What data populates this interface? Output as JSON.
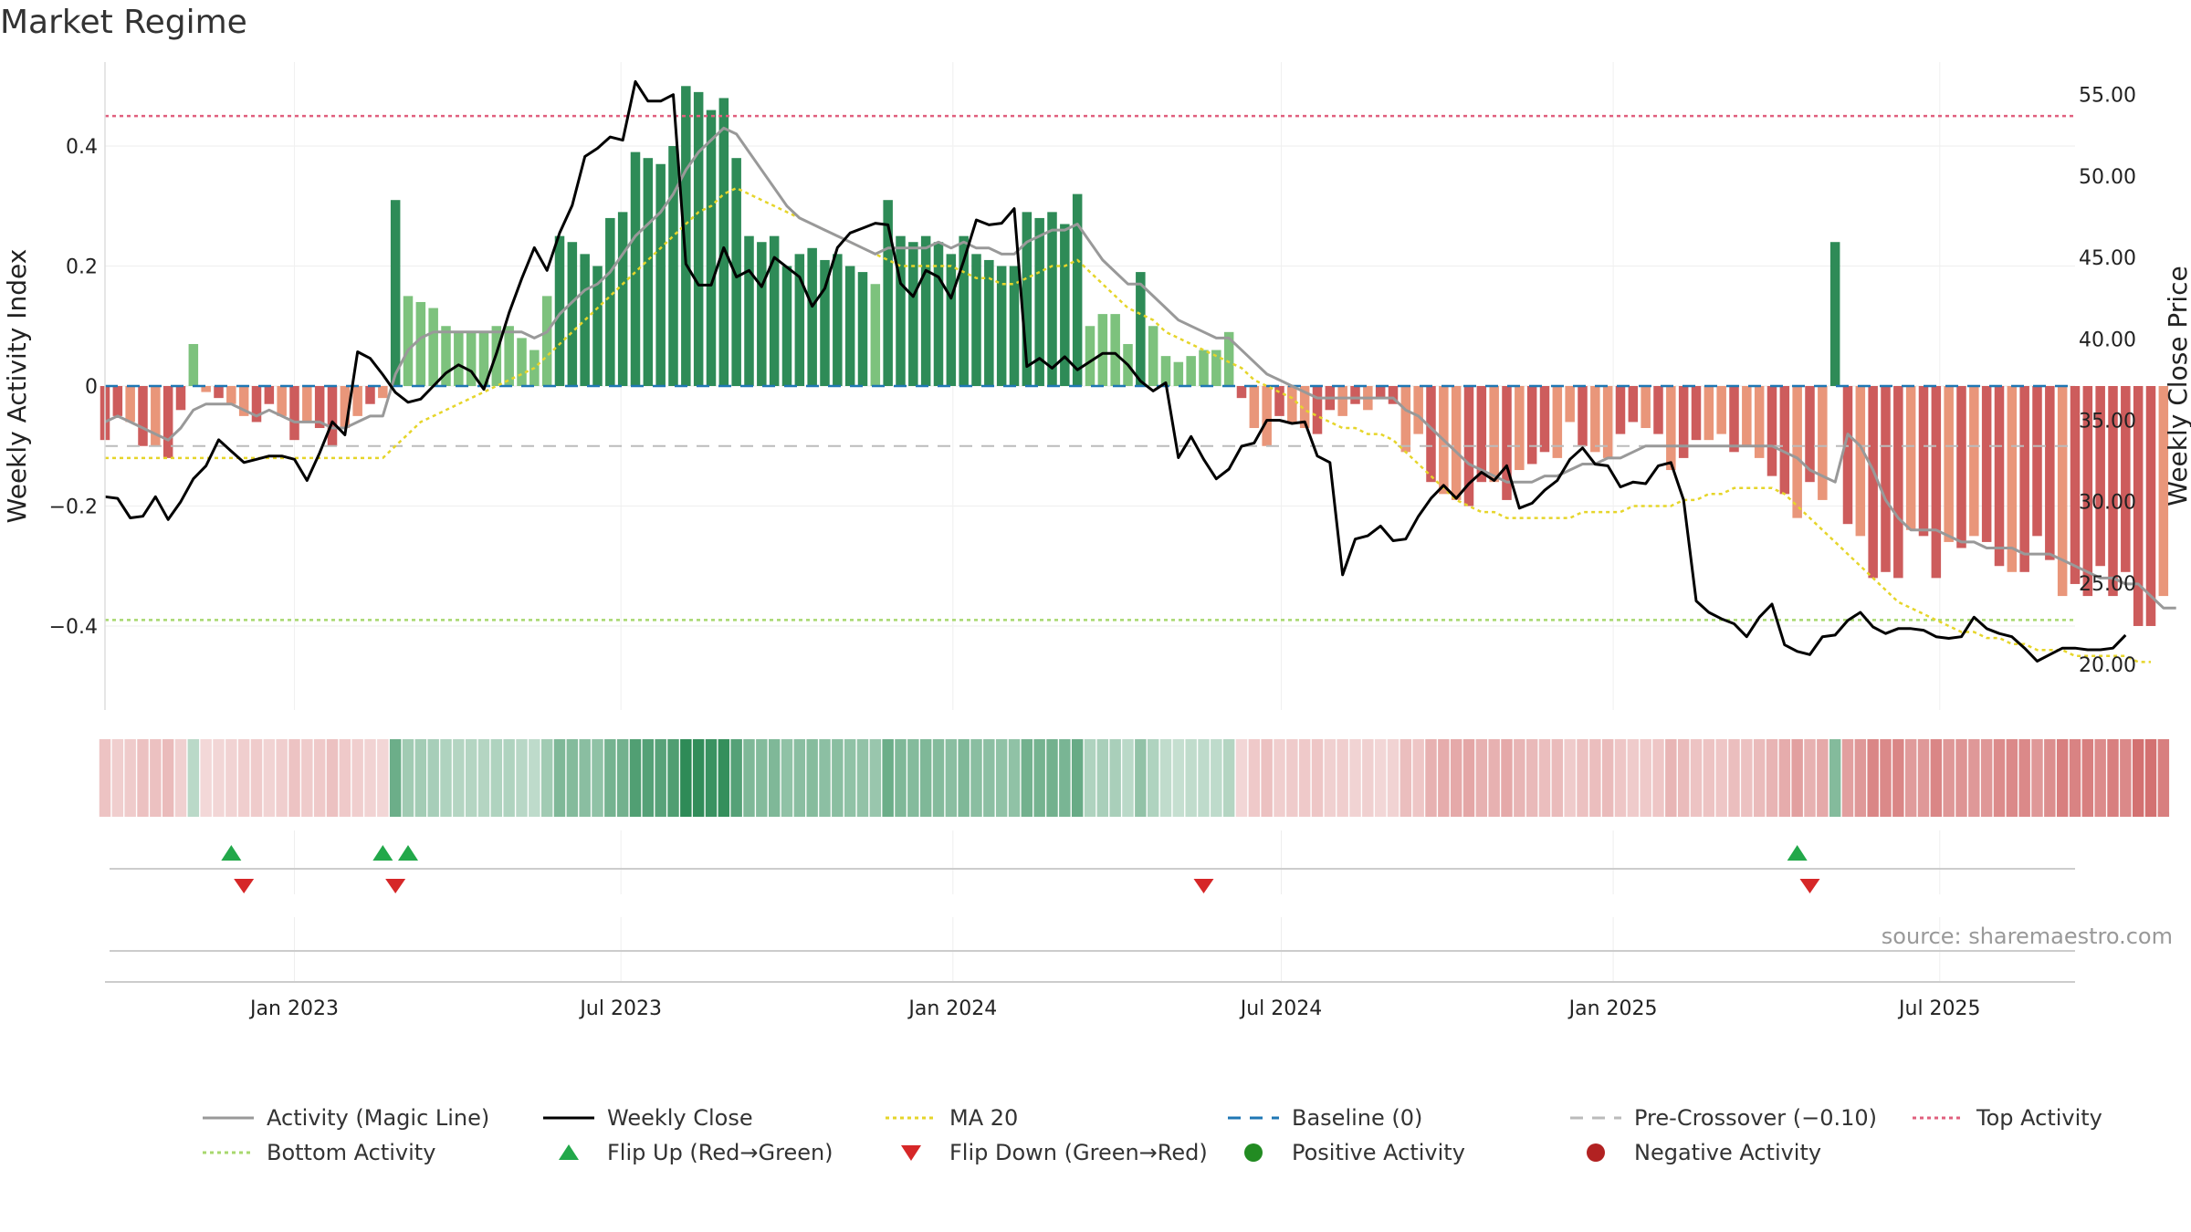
{
  "chart_data": {
    "type": "bar",
    "title": "Market Regime",
    "source": "source: sharemaestro.com",
    "ylabel_left": "Weekly Activity Index",
    "ylabel_right": "Weekly Close Price",
    "ylim_left": [
      -0.54,
      0.54
    ],
    "ylim_right": [
      17.2,
      57.0
    ],
    "yticks_left": [
      "0.4",
      "0.2",
      "0",
      "−0.2",
      "−0.4"
    ],
    "yticks_left_values": [
      0.4,
      0.2,
      0,
      -0.2,
      -0.4
    ],
    "yticks_right": [
      "55.00",
      "50.00",
      "45.00",
      "40.00",
      "35.00",
      "30.00",
      "25.00",
      "20.00"
    ],
    "yticks_right_values": [
      55,
      50,
      45,
      40,
      35,
      30,
      25,
      20
    ],
    "x_start": "2022-09-18",
    "x_end": "2025-09-14",
    "xticks": [
      {
        "date": "2023-01-01",
        "label": "Jan 2023"
      },
      {
        "date": "2023-07-01",
        "label": "Jul 2023"
      },
      {
        "date": "2024-01-01",
        "label": "Jan 2024"
      },
      {
        "date": "2024-07-01",
        "label": "Jul 2024"
      },
      {
        "date": "2025-01-01",
        "label": "Jan 2025"
      },
      {
        "date": "2025-07-01",
        "label": "Jul 2025"
      }
    ],
    "week_start": "2022-09-18",
    "reference_lines": {
      "top_activity": 0.45,
      "bottom_activity": -0.39,
      "pre_crossover": -0.1,
      "baseline": 0
    },
    "activity": [
      -0.09,
      -0.05,
      -0.06,
      -0.1,
      -0.1,
      -0.12,
      -0.04,
      0.07,
      -0.01,
      -0.02,
      -0.03,
      -0.05,
      -0.06,
      -0.03,
      -0.05,
      -0.09,
      -0.06,
      -0.07,
      -0.1,
      -0.07,
      -0.05,
      -0.03,
      -0.02,
      0.31,
      0.15,
      0.14,
      0.13,
      0.1,
      0.09,
      0.09,
      0.09,
      0.1,
      0.1,
      0.08,
      0.06,
      0.15,
      0.25,
      0.24,
      0.22,
      0.2,
      0.28,
      0.29,
      0.39,
      0.38,
      0.37,
      0.4,
      0.5,
      0.49,
      0.46,
      0.48,
      0.38,
      0.25,
      0.24,
      0.25,
      0.2,
      0.22,
      0.23,
      0.21,
      0.22,
      0.2,
      0.19,
      0.17,
      0.31,
      0.25,
      0.24,
      0.25,
      0.24,
      0.22,
      0.25,
      0.22,
      0.21,
      0.2,
      0.2,
      0.29,
      0.28,
      0.29,
      0.27,
      0.32,
      0.1,
      0.12,
      0.12,
      0.07,
      0.19,
      0.1,
      0.05,
      0.04,
      0.05,
      0.06,
      0.06,
      0.09,
      -0.02,
      -0.07,
      -0.1,
      -0.05,
      -0.06,
      -0.07,
      -0.08,
      -0.04,
      -0.05,
      -0.03,
      -0.04,
      -0.02,
      -0.03,
      -0.11,
      -0.08,
      -0.16,
      -0.18,
      -0.19,
      -0.2,
      -0.16,
      -0.16,
      -0.19,
      -0.14,
      -0.13,
      -0.11,
      -0.12,
      -0.06,
      -0.1,
      -0.11,
      -0.12,
      -0.08,
      -0.06,
      -0.07,
      -0.08,
      -0.14,
      -0.12,
      -0.09,
      -0.09,
      -0.08,
      -0.11,
      -0.1,
      -0.12,
      -0.15,
      -0.18,
      -0.22,
      -0.16,
      -0.19,
      0.24,
      -0.23,
      -0.25,
      -0.32,
      -0.31,
      -0.32,
      -0.24,
      -0.25,
      -0.32,
      -0.26,
      -0.27,
      -0.25,
      -0.26,
      -0.3,
      -0.31,
      -0.31,
      -0.25,
      -0.29,
      -0.35,
      -0.33,
      -0.35,
      -0.3,
      -0.35,
      -0.31,
      -0.4,
      -0.4,
      -0.35
    ],
    "magic_line": [
      -0.06,
      -0.05,
      -0.06,
      -0.07,
      -0.08,
      -0.09,
      -0.07,
      -0.04,
      -0.03,
      -0.03,
      -0.03,
      -0.04,
      -0.05,
      -0.04,
      -0.05,
      -0.06,
      -0.06,
      -0.06,
      -0.07,
      -0.07,
      -0.06,
      -0.05,
      -0.05,
      0.02,
      0.06,
      0.08,
      0.09,
      0.09,
      0.09,
      0.09,
      0.09,
      0.09,
      0.09,
      0.09,
      0.08,
      0.09,
      0.12,
      0.14,
      0.16,
      0.17,
      0.19,
      0.22,
      0.25,
      0.27,
      0.29,
      0.32,
      0.36,
      0.39,
      0.41,
      0.43,
      0.42,
      0.39,
      0.36,
      0.33,
      0.3,
      0.28,
      0.27,
      0.26,
      0.25,
      0.24,
      0.23,
      0.22,
      0.23,
      0.23,
      0.23,
      0.23,
      0.24,
      0.23,
      0.24,
      0.23,
      0.23,
      0.22,
      0.22,
      0.24,
      0.25,
      0.26,
      0.26,
      0.27,
      0.24,
      0.21,
      0.19,
      0.17,
      0.17,
      0.15,
      0.13,
      0.11,
      0.1,
      0.09,
      0.08,
      0.08,
      0.06,
      0.04,
      0.02,
      0.01,
      0.0,
      -0.01,
      -0.02,
      -0.02,
      -0.02,
      -0.02,
      -0.02,
      -0.02,
      -0.02,
      -0.04,
      -0.05,
      -0.07,
      -0.09,
      -0.11,
      -0.13,
      -0.14,
      -0.15,
      -0.16,
      -0.16,
      -0.16,
      -0.15,
      -0.15,
      -0.14,
      -0.13,
      -0.13,
      -0.12,
      -0.12,
      -0.11,
      -0.1,
      -0.1,
      -0.1,
      -0.1,
      -0.1,
      -0.1,
      -0.1,
      -0.1,
      -0.1,
      -0.1,
      -0.1,
      -0.11,
      -0.12,
      -0.14,
      -0.15,
      -0.16,
      -0.08,
      -0.1,
      -0.14,
      -0.19,
      -0.22,
      -0.24,
      -0.24,
      -0.24,
      -0.25,
      -0.26,
      -0.26,
      -0.27,
      -0.27,
      -0.27,
      -0.28,
      -0.28,
      -0.28,
      -0.29,
      -0.3,
      -0.31,
      -0.32,
      -0.32,
      -0.33,
      -0.33,
      -0.35,
      -0.37,
      -0.37
    ],
    "ma20": [
      -0.12,
      -0.12,
      -0.12,
      -0.12,
      -0.12,
      -0.12,
      -0.12,
      -0.12,
      -0.12,
      -0.12,
      -0.12,
      -0.12,
      -0.12,
      -0.12,
      -0.12,
      -0.12,
      -0.12,
      -0.12,
      -0.12,
      -0.12,
      -0.12,
      -0.12,
      -0.12,
      -0.1,
      -0.08,
      -0.06,
      -0.05,
      -0.04,
      -0.03,
      -0.02,
      -0.01,
      0.0,
      0.01,
      0.02,
      0.03,
      0.05,
      0.07,
      0.09,
      0.11,
      0.13,
      0.15,
      0.17,
      0.19,
      0.21,
      0.23,
      0.25,
      0.27,
      0.29,
      0.3,
      0.32,
      0.33,
      0.32,
      0.31,
      0.3,
      0.29,
      0.28,
      0.27,
      0.26,
      0.25,
      0.24,
      0.23,
      0.22,
      0.21,
      0.2,
      0.2,
      0.2,
      0.2,
      0.2,
      0.19,
      0.18,
      0.18,
      0.17,
      0.17,
      0.18,
      0.19,
      0.2,
      0.2,
      0.21,
      0.19,
      0.17,
      0.15,
      0.13,
      0.12,
      0.11,
      0.09,
      0.08,
      0.07,
      0.06,
      0.05,
      0.04,
      0.03,
      0.01,
      0.0,
      -0.01,
      -0.02,
      -0.04,
      -0.05,
      -0.06,
      -0.07,
      -0.07,
      -0.08,
      -0.08,
      -0.09,
      -0.11,
      -0.13,
      -0.15,
      -0.17,
      -0.19,
      -0.2,
      -0.21,
      -0.21,
      -0.22,
      -0.22,
      -0.22,
      -0.22,
      -0.22,
      -0.22,
      -0.21,
      -0.21,
      -0.21,
      -0.21,
      -0.2,
      -0.2,
      -0.2,
      -0.2,
      -0.19,
      -0.19,
      -0.18,
      -0.18,
      -0.17,
      -0.17,
      -0.17,
      -0.17,
      -0.18,
      -0.2,
      -0.22,
      -0.24,
      -0.26,
      -0.28,
      -0.3,
      -0.32,
      -0.34,
      -0.36,
      -0.37,
      -0.38,
      -0.39,
      -0.4,
      -0.41,
      -0.41,
      -0.42,
      -0.42,
      -0.43,
      -0.43,
      -0.44,
      -0.44,
      -0.44,
      -0.45,
      -0.45,
      -0.45,
      -0.45,
      -0.45,
      -0.46,
      -0.46
    ],
    "weekly_close": [
      30.3,
      30.2,
      29.0,
      29.1,
      30.3,
      28.9,
      30.0,
      31.4,
      32.2,
      33.8,
      33.1,
      32.4,
      32.6,
      32.8,
      32.8,
      32.6,
      31.3,
      33.0,
      34.9,
      34.1,
      39.2,
      38.8,
      37.8,
      36.7,
      36.1,
      36.3,
      37.1,
      37.9,
      38.4,
      38.0,
      36.9,
      39.1,
      41.6,
      43.7,
      45.6,
      44.2,
      46.5,
      48.2,
      51.2,
      51.7,
      52.4,
      52.2,
      55.8,
      54.6,
      54.6,
      55.0,
      44.6,
      43.3,
      43.3,
      45.6,
      43.8,
      44.2,
      43.2,
      45.0,
      44.4,
      43.8,
      42.0,
      43.1,
      45.6,
      46.5,
      46.8,
      47.1,
      47.0,
      43.4,
      42.6,
      44.2,
      43.8,
      42.5,
      44.8,
      47.3,
      47.0,
      47.1,
      48.0,
      38.3,
      38.8,
      38.2,
      38.9,
      38.1,
      38.6,
      39.1,
      39.1,
      38.4,
      37.4,
      36.8,
      37.3,
      32.7,
      34.0,
      32.6,
      31.4,
      32.0,
      33.4,
      33.6,
      35.0,
      35.0,
      34.8,
      34.9,
      32.8,
      32.4,
      25.5,
      27.7,
      27.9,
      28.5,
      27.6,
      27.7,
      29.1,
      30.2,
      31.0,
      30.2,
      31.1,
      31.8,
      31.3,
      32.2,
      29.6,
      29.9,
      30.7,
      31.3,
      32.6,
      33.3,
      32.3,
      32.2,
      30.9,
      31.2,
      31.1,
      32.2,
      32.4,
      30.1,
      23.9,
      23.2,
      22.8,
      22.5,
      21.7,
      22.9,
      23.7,
      21.2,
      20.8,
      20.6,
      21.7,
      21.8,
      22.7,
      23.2,
      22.3,
      21.9,
      22.2,
      22.2,
      22.1,
      21.7,
      21.6,
      21.7,
      22.9,
      22.2,
      21.9,
      21.7,
      21.0,
      20.2,
      20.6,
      21.0,
      21.0,
      20.9,
      20.9,
      21.0,
      21.8
    ],
    "flips": [
      {
        "date": "2022-11-27",
        "direction": "up"
      },
      {
        "date": "2022-12-04",
        "direction": "down"
      },
      {
        "date": "2023-02-19",
        "direction": "up"
      },
      {
        "date": "2023-02-26",
        "direction": "down"
      },
      {
        "date": "2023-03-05",
        "direction": "up"
      },
      {
        "date": "2024-05-19",
        "direction": "down"
      },
      {
        "date": "2025-04-13",
        "direction": "up"
      },
      {
        "date": "2025-04-20",
        "direction": "down"
      }
    ],
    "colors": {
      "strong_green": "#2e8b57",
      "light_green": "#7dc27d",
      "strong_red": "#cd5c5c",
      "light_red": "#e9967a",
      "magic_line": "#999999",
      "weekly_close": "#000000",
      "ma20": "#e6d52a",
      "baseline": "#1f77b4",
      "pre_crossover": "#bbbbbb",
      "top_activity": "#e0607e",
      "bottom_activity": "#a8d86e",
      "flip_up": "#22a84a",
      "flip_down": "#d62728",
      "positive_dot": "#228b22",
      "negative_dot": "#b22222"
    },
    "legend": [
      {
        "label": "Activity (Magic Line)",
        "kind": "line",
        "color": "#999999",
        "dash": ""
      },
      {
        "label": "Weekly Close",
        "kind": "line",
        "color": "#000000",
        "dash": ""
      },
      {
        "label": "MA 20",
        "kind": "line",
        "color": "#e6d52a",
        "dash": "4 4"
      },
      {
        "label": "Baseline (0)",
        "kind": "line",
        "color": "#1f77b4",
        "dash": "14 10"
      },
      {
        "label": "Pre-Crossover (−0.10)",
        "kind": "line",
        "color": "#bbbbbb",
        "dash": "14 10"
      },
      {
        "label": "Top Activity",
        "kind": "line",
        "color": "#e0607e",
        "dash": "4 4"
      },
      {
        "label": "Bottom Activity",
        "kind": "line",
        "color": "#a8d86e",
        "dash": "4 4"
      },
      {
        "label": "Flip Up (Red→Green)",
        "kind": "tri-up",
        "color": "#22a84a",
        "dash": ""
      },
      {
        "label": "Flip Down (Green→Red)",
        "kind": "tri-down",
        "color": "#d62728",
        "dash": ""
      },
      {
        "label": "Positive Activity",
        "kind": "dot",
        "color": "#228b22",
        "dash": ""
      },
      {
        "label": "Negative Activity",
        "kind": "dot",
        "color": "#b22222",
        "dash": ""
      }
    ]
  }
}
